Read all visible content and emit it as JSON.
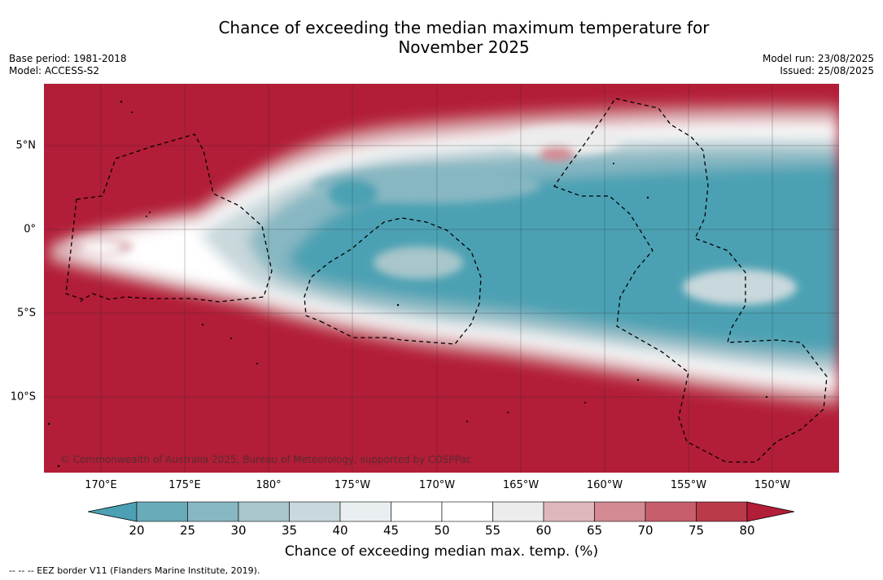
{
  "header": {
    "title_line1": "Chance of exceeding the median maximum temperature for",
    "title_line2": "November 2025",
    "base_period": "Base period: 1981-2018",
    "model": "Model: ACCESS-S2",
    "model_run": "Model run: 23/08/2025",
    "issued": "Issued: 25/08/2025"
  },
  "map": {
    "copyright": "© Commonwealth of Australia 2025, Bureau of Meteorology, supported by COSPPac",
    "lon_labels": [
      "170°E",
      "175°E",
      "180°",
      "175°W",
      "170°W",
      "165°W",
      "160°W",
      "155°W",
      "150°W"
    ],
    "lat_labels": [
      "5°N",
      "0°",
      "5°S",
      "10°S"
    ],
    "background_color": "#b21d37",
    "eez_color": "#000000"
  },
  "colorbar": {
    "ticks": [
      "20",
      "25",
      "30",
      "35",
      "40",
      "45",
      "50",
      "55",
      "60",
      "65",
      "70",
      "75",
      "80"
    ],
    "colors": [
      "#4ba1b3",
      "#6aabb9",
      "#87b7c2",
      "#a8c6cb",
      "#c9d8dc",
      "#e9eff1",
      "#ffffff",
      "#ffffff",
      "#ececec",
      "#deb7bc",
      "#d38a92",
      "#c65f6b",
      "#bb3a4a",
      "#b21d37"
    ],
    "label": "Chance of exceeding median max. temp. (%)"
  },
  "footer": {
    "legend_text": "--  --  -- EEZ border V11 (Flanders Marine Institute, 2019)."
  }
}
